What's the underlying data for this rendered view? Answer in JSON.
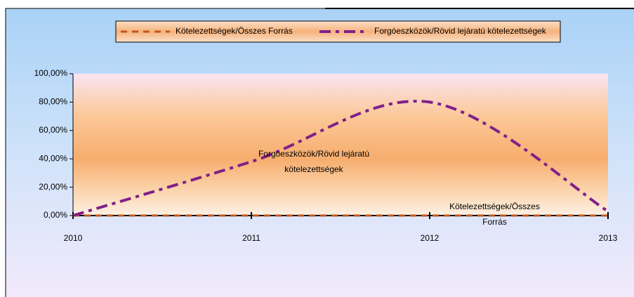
{
  "chart_data": {
    "type": "line",
    "x": [
      2010,
      2011,
      2012,
      2013
    ],
    "xlim": [
      2010,
      2013
    ],
    "xticks": [
      2010,
      2011,
      2012,
      2013
    ],
    "ylim": [
      0,
      100
    ],
    "yticks": [
      {
        "value": 0,
        "label": "0,00%"
      },
      {
        "value": 20,
        "label": "20,00%"
      },
      {
        "value": 40,
        "label": "40,00%"
      },
      {
        "value": 60,
        "label": "60,00%"
      },
      {
        "value": 80,
        "label": "80,00%"
      },
      {
        "value": 100,
        "label": "100,00%"
      }
    ],
    "legend": "top",
    "smooth": true,
    "series": [
      {
        "name": "Kötelezettségek/Összes Forrás",
        "color": "#c0581c",
        "line_style": "dashed",
        "values": [
          0,
          0,
          0,
          0
        ]
      },
      {
        "name": "Forgóeszközök/Rövid lejáratú kötelezettségek",
        "color": "#80208a",
        "line_style": "dash-dot",
        "values": [
          0,
          38,
          80,
          3
        ]
      }
    ]
  }
}
